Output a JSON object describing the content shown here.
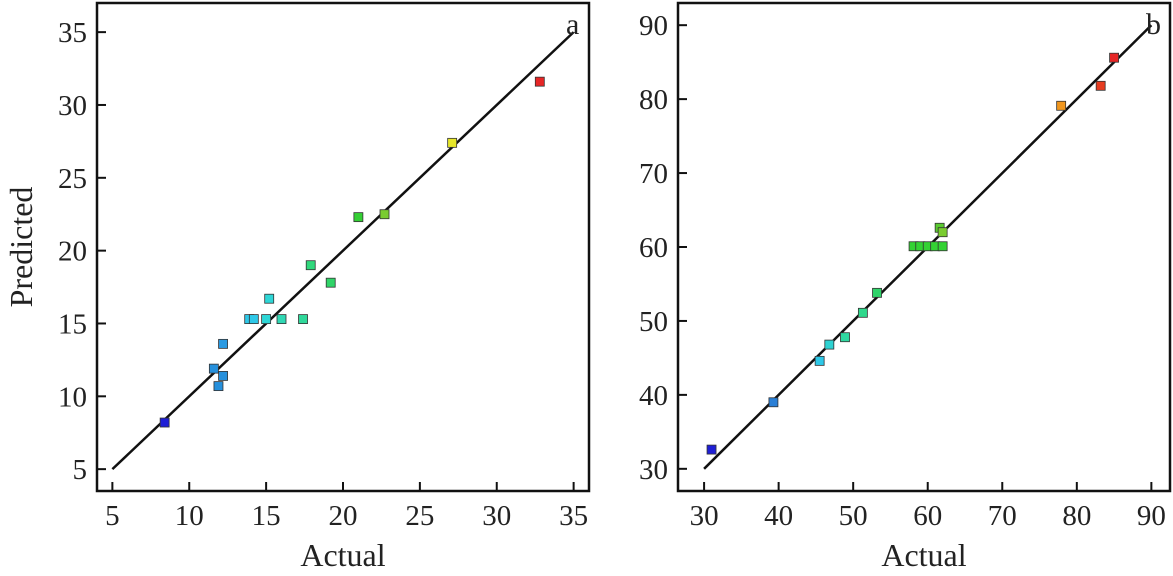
{
  "figure": {
    "ylabel": "Predicted"
  },
  "chart_data": [
    {
      "type": "scatter",
      "panel": "a",
      "title": "",
      "xlabel": "Actual",
      "ylabel": "Predicted",
      "xlim": [
        4,
        36
      ],
      "ylim": [
        3.5,
        37
      ],
      "xticks": [
        5,
        10,
        15,
        20,
        25,
        30,
        35
      ],
      "yticks": [
        5,
        10,
        15,
        20,
        25,
        30,
        35
      ],
      "grid": false,
      "fit_line": {
        "from": [
          5,
          5
        ],
        "to": [
          35,
          35
        ]
      },
      "points": [
        {
          "x": 8.4,
          "y": 8.2,
          "color": "#1f1fd6"
        },
        {
          "x": 11.6,
          "y": 11.9,
          "color": "#2690dc"
        },
        {
          "x": 11.9,
          "y": 10.7,
          "color": "#2690dc"
        },
        {
          "x": 12.2,
          "y": 11.4,
          "color": "#2690dc"
        },
        {
          "x": 12.2,
          "y": 13.6,
          "color": "#2a9ae2"
        },
        {
          "x": 13.9,
          "y": 15.3,
          "color": "#2ec8e8"
        },
        {
          "x": 14.2,
          "y": 15.3,
          "color": "#2ec8e8"
        },
        {
          "x": 15.0,
          "y": 15.3,
          "color": "#2ed6d6"
        },
        {
          "x": 15.2,
          "y": 16.7,
          "color": "#2ed6d6"
        },
        {
          "x": 16.0,
          "y": 15.3,
          "color": "#30d8b4"
        },
        {
          "x": 17.4,
          "y": 15.3,
          "color": "#30d89a"
        },
        {
          "x": 17.9,
          "y": 19.0,
          "color": "#30d87c"
        },
        {
          "x": 19.2,
          "y": 17.8,
          "color": "#30d468"
        },
        {
          "x": 21.0,
          "y": 22.3,
          "color": "#34cf34"
        },
        {
          "x": 22.7,
          "y": 22.5,
          "color": "#7acc30"
        },
        {
          "x": 27.1,
          "y": 27.4,
          "color": "#e6e62a"
        },
        {
          "x": 32.8,
          "y": 31.6,
          "color": "#e62626"
        }
      ]
    },
    {
      "type": "scatter",
      "panel": "b",
      "title": "",
      "xlabel": "Actual",
      "ylabel": "",
      "xlim": [
        26.5,
        92.5
      ],
      "ylim": [
        27,
        93
      ],
      "xticks": [
        30,
        40,
        50,
        60,
        70,
        80,
        90
      ],
      "yticks": [
        30,
        40,
        50,
        60,
        70,
        80,
        90
      ],
      "grid": false,
      "fit_line": {
        "from": [
          30,
          30
        ],
        "to": [
          90,
          90
        ]
      },
      "points": [
        {
          "x": 31.0,
          "y": 32.6,
          "color": "#1f1fd6"
        },
        {
          "x": 39.3,
          "y": 39.0,
          "color": "#2a7fd6"
        },
        {
          "x": 45.5,
          "y": 44.6,
          "color": "#2ec8e8"
        },
        {
          "x": 46.8,
          "y": 46.8,
          "color": "#2ed2d2"
        },
        {
          "x": 48.9,
          "y": 47.8,
          "color": "#30d8a0"
        },
        {
          "x": 51.3,
          "y": 51.1,
          "color": "#30d88c"
        },
        {
          "x": 53.2,
          "y": 53.8,
          "color": "#30d46a"
        },
        {
          "x": 58.1,
          "y": 60.1,
          "color": "#34d234"
        },
        {
          "x": 59.0,
          "y": 60.1,
          "color": "#34d234"
        },
        {
          "x": 60.0,
          "y": 60.1,
          "color": "#34d234"
        },
        {
          "x": 61.0,
          "y": 60.1,
          "color": "#34d234"
        },
        {
          "x": 62.0,
          "y": 60.1,
          "color": "#34d234"
        },
        {
          "x": 61.6,
          "y": 62.6,
          "color": "#5acb30"
        },
        {
          "x": 62.0,
          "y": 62.0,
          "color": "#7acc30"
        },
        {
          "x": 77.9,
          "y": 79.1,
          "color": "#f0961e"
        },
        {
          "x": 83.2,
          "y": 81.8,
          "color": "#e63c20"
        },
        {
          "x": 85.0,
          "y": 85.6,
          "color": "#e62626"
        }
      ]
    }
  ]
}
